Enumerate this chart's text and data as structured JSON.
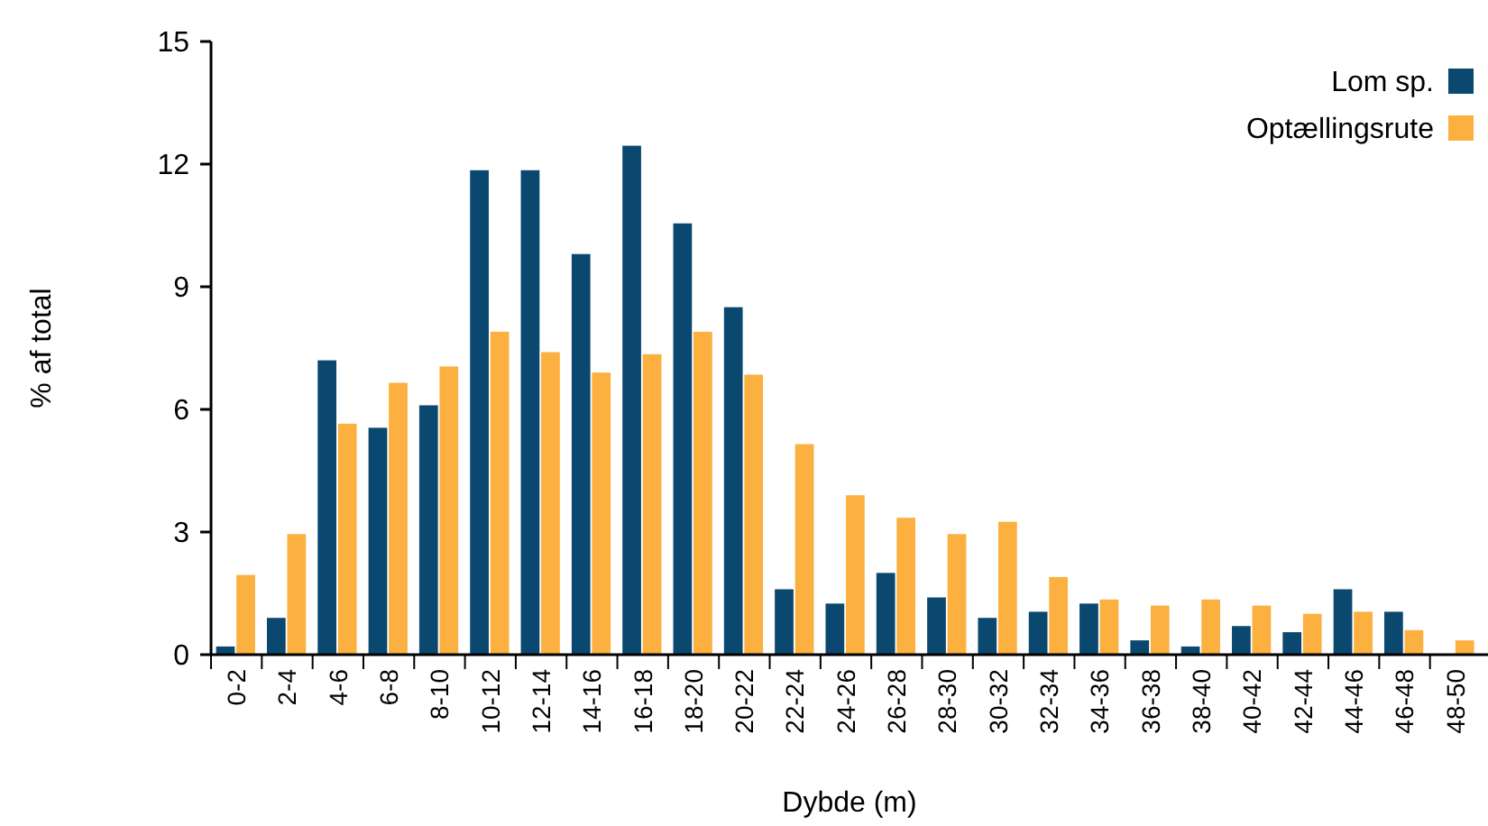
{
  "chart_data": {
    "type": "bar",
    "xlabel": "Dybde (m)",
    "ylabel": "% af total",
    "categories": [
      "0-2",
      "2-4",
      "4-6",
      "6-8",
      "8-10",
      "10-12",
      "12-14",
      "14-16",
      "16-18",
      "18-20",
      "20-22",
      "22-24",
      "24-26",
      "26-28",
      "28-30",
      "30-32",
      "32-34",
      "34-36",
      "36-38",
      "38-40",
      "40-42",
      "42-44",
      "44-46",
      "46-48",
      "48-50"
    ],
    "series": [
      {
        "name": "Lom sp.",
        "color": "#0a4870",
        "values": [
          0.2,
          0.9,
          7.2,
          5.55,
          6.1,
          11.85,
          11.85,
          9.8,
          12.45,
          10.55,
          8.5,
          1.6,
          1.25,
          2.0,
          1.4,
          0.9,
          1.05,
          1.25,
          0.35,
          0.2,
          0.7,
          0.55,
          1.6,
          1.05,
          0
        ]
      },
      {
        "name": "Optællingsrute",
        "color": "#fbb040",
        "values": [
          1.95,
          2.95,
          5.65,
          6.65,
          7.05,
          7.9,
          7.4,
          6.9,
          7.35,
          7.9,
          6.85,
          5.15,
          3.9,
          3.35,
          2.95,
          3.25,
          1.9,
          1.35,
          1.2,
          1.35,
          1.2,
          1.0,
          1.05,
          0.6,
          0.35
        ]
      }
    ],
    "ylim": [
      0,
      15
    ],
    "yticks": [
      0,
      3,
      6,
      9,
      12,
      15
    ],
    "grid": false,
    "legend": "top right"
  }
}
